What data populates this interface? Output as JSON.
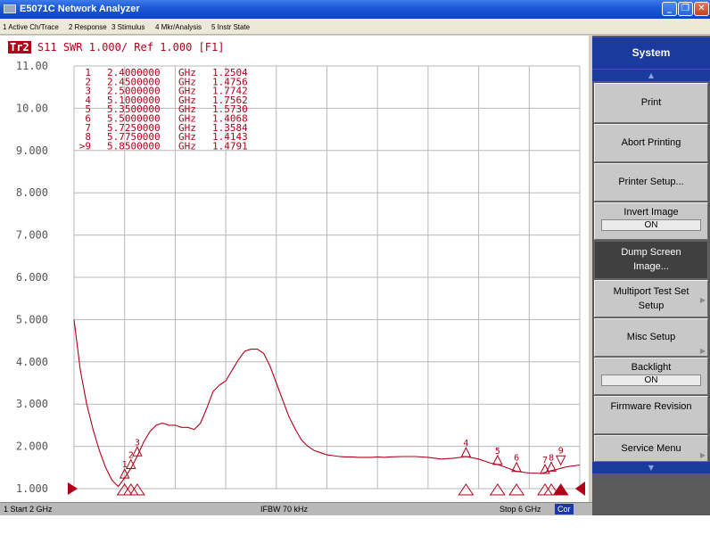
{
  "window": {
    "title": "E5071C Network Analyzer",
    "controls": {
      "minimize": "_",
      "maximize": "❐",
      "close": "✕"
    }
  },
  "menu": [
    "1 Active Ch/Trace",
    "2 Response",
    "3 Stimulus",
    "4 Mkr/Analysis",
    "5 Instr State"
  ],
  "trace_header": {
    "trace_badge": "Tr2",
    "text": "S11  SWR 1.000/ Ref 1.000 [F1]"
  },
  "colors": {
    "trace": "#b0001a",
    "softkey_title": "#1a3aa0",
    "grid": "#b8b8b8"
  },
  "chart_data": {
    "type": "line",
    "x_unit": "GHz",
    "xlim": [
      2.0,
      6.0
    ],
    "ylim": [
      1.0,
      11.0
    ],
    "y_tick_labels": [
      "11.00",
      "10.00",
      "9.000",
      "8.000",
      "7.000",
      "6.000",
      "5.000",
      "4.000",
      "3.000",
      "2.000",
      "1.000"
    ],
    "grid": true,
    "reference_value": 1.0,
    "markers": [
      {
        "id": "1",
        "freq": "2.4000000",
        "unit": "GHz",
        "value": "1.2504",
        "x": 2.4,
        "y": 1.2504
      },
      {
        "id": "2",
        "freq": "2.4500000",
        "unit": "GHz",
        "value": "1.4756",
        "x": 2.45,
        "y": 1.4756
      },
      {
        "id": "3",
        "freq": "2.5000000",
        "unit": "GHz",
        "value": "1.7742",
        "x": 2.5,
        "y": 1.7742
      },
      {
        "id": "4",
        "freq": "5.1000000",
        "unit": "GHz",
        "value": "1.7562",
        "x": 5.1,
        "y": 1.7562
      },
      {
        "id": "5",
        "freq": "5.3500000",
        "unit": "GHz",
        "value": "1.5730",
        "x": 5.35,
        "y": 1.573
      },
      {
        "id": "6",
        "freq": "5.5000000",
        "unit": "GHz",
        "value": "1.4068",
        "x": 5.5,
        "y": 1.4068
      },
      {
        "id": "7",
        "freq": "5.7250000",
        "unit": "GHz",
        "value": "1.3584",
        "x": 5.725,
        "y": 1.3584
      },
      {
        "id": "8",
        "freq": "5.7750000",
        "unit": "GHz",
        "value": "1.4143",
        "x": 5.775,
        "y": 1.4143
      },
      {
        "id": ">9",
        "freq": "5.8500000",
        "unit": "GHz",
        "value": "1.4791",
        "x": 5.85,
        "y": 1.4791
      }
    ],
    "series": [
      {
        "x": [
          2.0,
          2.05,
          2.1,
          2.15,
          2.2,
          2.25,
          2.3,
          2.35,
          2.4,
          2.45,
          2.5,
          2.55,
          2.6,
          2.65,
          2.7,
          2.75,
          2.8,
          2.85,
          2.9,
          2.95,
          3.0,
          3.05,
          3.1,
          3.15,
          3.2,
          3.25,
          3.3,
          3.35,
          3.4,
          3.45,
          3.5,
          3.55,
          3.6,
          3.65,
          3.7,
          3.75,
          3.8,
          3.85,
          3.9,
          3.95,
          4.0,
          4.05,
          4.1,
          4.15,
          4.2,
          4.25,
          4.3,
          4.35,
          4.4,
          4.45,
          4.5,
          4.6,
          4.7,
          4.8,
          4.9,
          5.0,
          5.1,
          5.2,
          5.3,
          5.35,
          5.4,
          5.5,
          5.6,
          5.7,
          5.75,
          5.8,
          5.85,
          5.9,
          6.0
        ],
        "y": [
          5.0,
          3.8,
          3.0,
          2.4,
          1.9,
          1.5,
          1.2,
          1.05,
          1.25,
          1.48,
          1.77,
          2.1,
          2.35,
          2.5,
          2.55,
          2.5,
          2.5,
          2.45,
          2.45,
          2.4,
          2.55,
          2.9,
          3.3,
          3.45,
          3.55,
          3.8,
          4.05,
          4.25,
          4.3,
          4.3,
          4.2,
          3.9,
          3.5,
          3.1,
          2.7,
          2.4,
          2.15,
          2.0,
          1.9,
          1.85,
          1.8,
          1.78,
          1.76,
          1.75,
          1.75,
          1.74,
          1.74,
          1.74,
          1.75,
          1.74,
          1.75,
          1.76,
          1.76,
          1.74,
          1.7,
          1.72,
          1.76,
          1.7,
          1.6,
          1.57,
          1.52,
          1.41,
          1.37,
          1.36,
          1.41,
          1.44,
          1.48,
          1.52,
          1.56
        ]
      }
    ]
  },
  "status": {
    "start": "1  Start 2 GHz",
    "ifbw": "IFBW 70 kHz",
    "stop": "Stop 6 GHz",
    "cor": "Cor"
  },
  "softkeys": {
    "title": "System",
    "scroll_up": "▲",
    "scroll_down": "▼",
    "buttons": [
      {
        "label": "Print"
      },
      {
        "label": "Abort Printing"
      },
      {
        "label": "Printer Setup..."
      },
      {
        "label": "Invert Image",
        "value": "ON"
      },
      {
        "label": "Dump Screen Image..."
      },
      {
        "label": "Multiport Test Set Setup",
        "arrow": "▶"
      },
      {
        "label": "Misc Setup",
        "arrow": "▶"
      },
      {
        "label": "Backlight",
        "value": "ON"
      },
      {
        "label": "Firmware Revision"
      },
      {
        "label": "Service Menu",
        "arrow": "▶"
      }
    ]
  }
}
